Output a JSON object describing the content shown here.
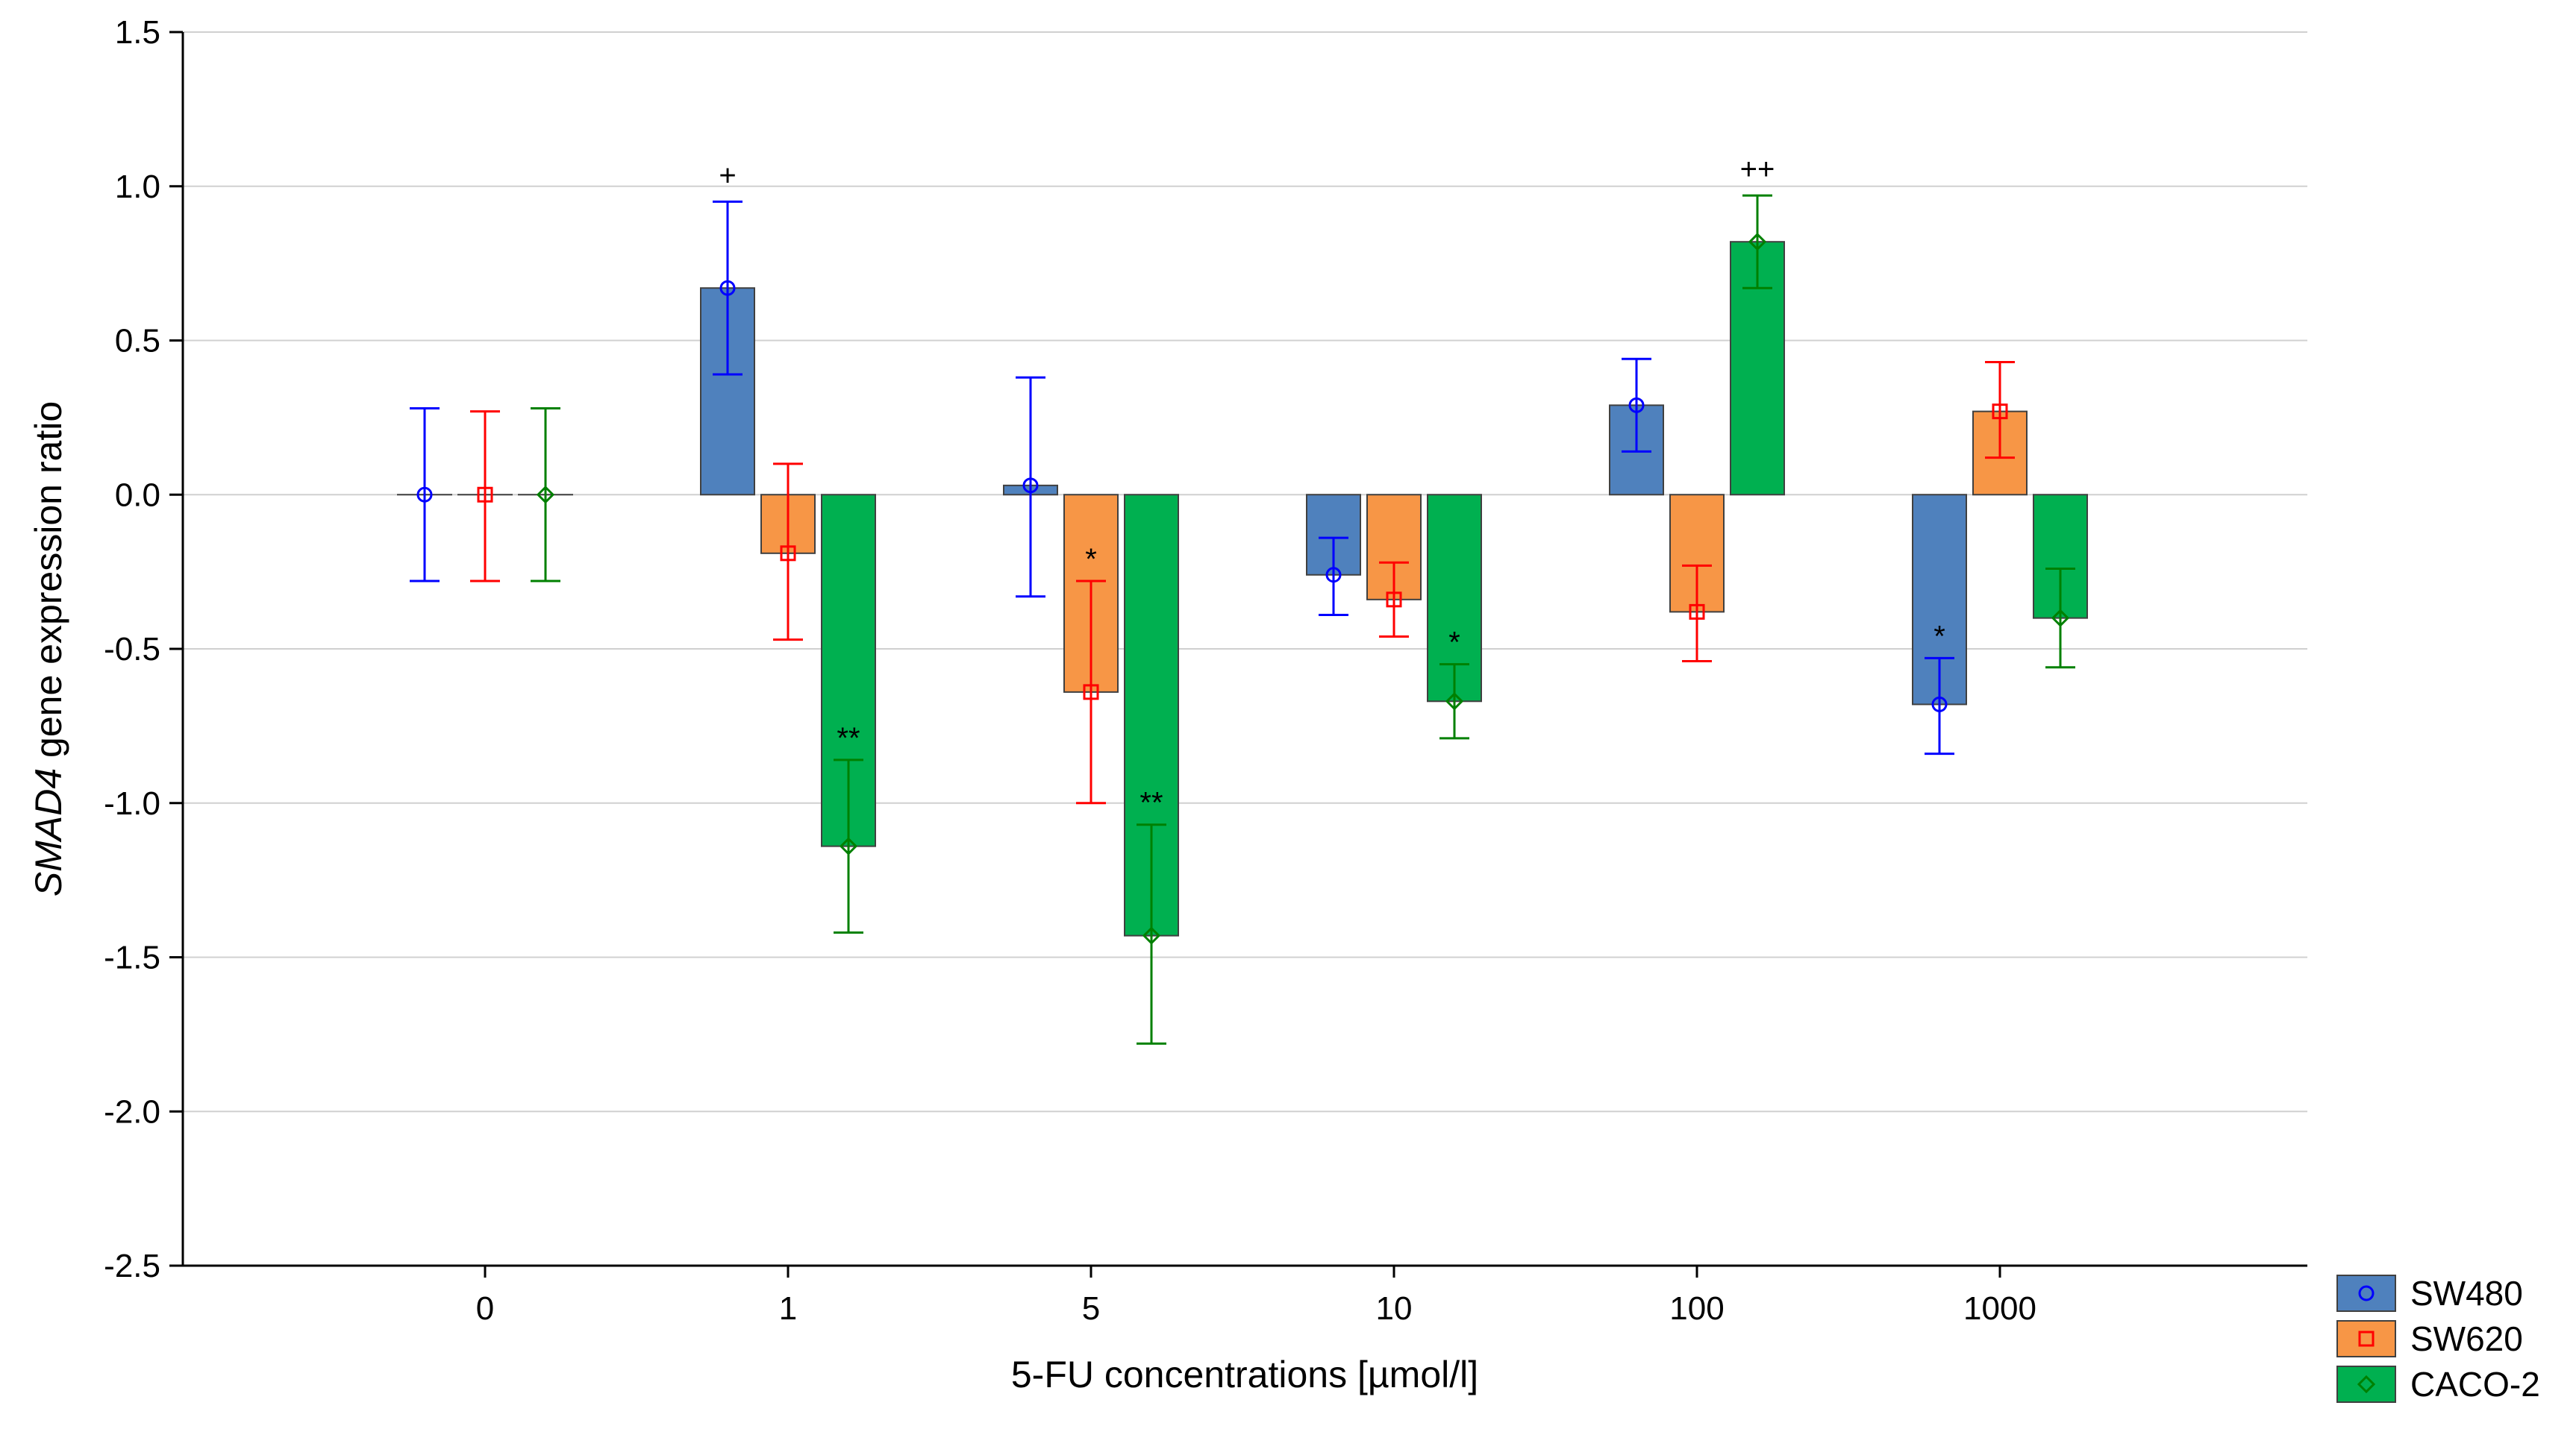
{
  "chart_data": {
    "type": "bar",
    "title": "",
    "xlabel": "5-FU concentrations [µmol/l]",
    "ylabel_italic": "SMAD4",
    "ylabel_rest": " gene expression ratio",
    "categories": [
      "0",
      "1",
      "5",
      "10",
      "100",
      "1000"
    ],
    "ylim": [
      -2.5,
      1.5
    ],
    "yticks": [
      1.5,
      1.0,
      0.5,
      0.0,
      -0.5,
      -1.0,
      -1.5,
      -2.0,
      -2.5
    ],
    "ytick_labels": [
      "1.5",
      "1.0",
      "0.5",
      "0.0",
      "-0.5",
      "-1.0",
      "-1.5",
      "-2.0",
      "-2.5"
    ],
    "grid": true,
    "legend_position": "bottom-right",
    "series": [
      {
        "name": "SW480",
        "color": "#4F81BD",
        "error_color": "#0000FF",
        "marker": "circle",
        "values": [
          0.0,
          0.67,
          0.03,
          -0.26,
          0.29,
          -0.68
        ],
        "err_low": [
          -0.28,
          0.39,
          -0.33,
          -0.39,
          0.14,
          -0.84
        ],
        "err_high": [
          0.28,
          0.95,
          0.38,
          -0.14,
          0.44,
          -0.53
        ],
        "annotations": [
          "",
          "+",
          "",
          "",
          "",
          "*"
        ]
      },
      {
        "name": "SW620",
        "color": "#F79646",
        "error_color": "#FF0000",
        "marker": "square",
        "values": [
          0.0,
          -0.19,
          -0.64,
          -0.34,
          -0.38,
          0.27
        ],
        "err_low": [
          -0.28,
          -0.47,
          -1.0,
          -0.46,
          -0.54,
          0.12
        ],
        "err_high": [
          0.27,
          0.1,
          -0.28,
          -0.22,
          -0.23,
          0.43
        ],
        "annotations": [
          "",
          "",
          "*",
          "",
          "",
          ""
        ]
      },
      {
        "name": "CACO-2",
        "color": "#00B050",
        "error_color": "#008000",
        "marker": "diamond",
        "values": [
          0.0,
          -1.14,
          -1.43,
          -0.67,
          0.82,
          -0.4
        ],
        "err_low": [
          -0.28,
          -1.42,
          -1.78,
          -0.79,
          0.67,
          -0.56
        ],
        "err_high": [
          0.28,
          -0.86,
          -1.07,
          -0.55,
          0.97,
          -0.24
        ],
        "annotations": [
          "",
          "**",
          "**",
          "*",
          "++",
          ""
        ]
      }
    ]
  }
}
